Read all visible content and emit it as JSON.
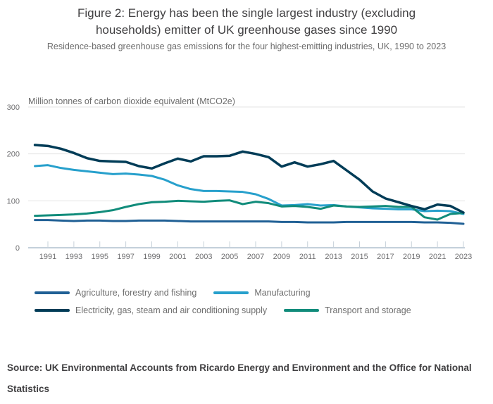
{
  "header": {
    "title": "Figure 2: Energy has been the single largest industry (excluding households) emitter of UK greenhouse gases since 1990",
    "subtitle": "Residence-based greenhouse gas emissions for the four highest-emitting industries, UK, 1990 to 2023"
  },
  "chart_data": {
    "type": "line",
    "title": "Figure 2: Energy has been the single largest industry (excluding households) emitter of UK greenhouse gases since 1990",
    "subtitle": "Residence-based greenhouse gas emissions for the four highest-emitting industries, UK, 1990 to 2023",
    "unit_label": "Million tonnes of carbon dioxide equivalent (MtCO2e)",
    "xlabel": "",
    "ylabel": "Million tonnes of carbon dioxide equivalent (MtCO2e)",
    "ylim": [
      0,
      300
    ],
    "y_ticks": [
      0,
      100,
      200,
      300
    ],
    "grid": true,
    "legend_position": "bottom",
    "x": [
      1990,
      1991,
      1992,
      1993,
      1994,
      1995,
      1996,
      1997,
      1998,
      1999,
      2000,
      2001,
      2002,
      2003,
      2004,
      2005,
      2006,
      2007,
      2008,
      2009,
      2010,
      2011,
      2012,
      2013,
      2014,
      2015,
      2016,
      2017,
      2018,
      2019,
      2020,
      2021,
      2022,
      2023
    ],
    "x_tick_labels": [
      1991,
      1993,
      1995,
      1997,
      1999,
      2001,
      2003,
      2005,
      2007,
      2009,
      2011,
      2013,
      2015,
      2017,
      2019,
      2021,
      2023
    ],
    "draw_order": [
      0,
      1,
      3,
      2
    ],
    "axis_colors": {
      "gridline": "#e3e3e3",
      "axis_line": "#b0c0ce",
      "tick_text": "#6f6f71"
    },
    "series": [
      {
        "id": "agriculture",
        "name": "Agriculture, forestry and fishing",
        "color": "#206095",
        "values": [
          59,
          59,
          58,
          57,
          58,
          58,
          57,
          57,
          58,
          58,
          58,
          57,
          56,
          56,
          56,
          56,
          56,
          56,
          56,
          55,
          55,
          54,
          54,
          54,
          55,
          55,
          55,
          55,
          55,
          55,
          54,
          54,
          53,
          51
        ]
      },
      {
        "id": "manufacturing",
        "name": "Manufacturing",
        "color": "#27A0CC",
        "values": [
          174,
          176,
          170,
          166,
          163,
          160,
          157,
          158,
          156,
          153,
          145,
          133,
          125,
          121,
          121,
          120,
          119,
          114,
          104,
          90,
          91,
          93,
          90,
          91,
          88,
          86,
          84,
          83,
          82,
          82,
          78,
          79,
          78,
          72
        ]
      },
      {
        "id": "electricity",
        "name": "Electricity, gas, steam and air conditioning supply",
        "color": "#003C57",
        "values": [
          219,
          217,
          211,
          202,
          191,
          185,
          184,
          183,
          174,
          169,
          180,
          190,
          184,
          195,
          195,
          196,
          205,
          200,
          193,
          173,
          182,
          173,
          178,
          185,
          165,
          145,
          120,
          105,
          97,
          89,
          82,
          92,
          89,
          75
        ]
      },
      {
        "id": "transport",
        "name": "Transport and storage",
        "color": "#118C7B",
        "values": [
          68,
          69,
          70,
          71,
          73,
          76,
          80,
          87,
          93,
          97,
          98,
          100,
          99,
          98,
          100,
          101,
          93,
          98,
          95,
          88,
          89,
          87,
          83,
          90,
          88,
          87,
          88,
          89,
          87,
          87,
          65,
          60,
          72,
          74
        ]
      }
    ]
  },
  "source": "Source: UK Environmental Accounts from Ricardo Energy and Environment and the Office for National Statistics"
}
